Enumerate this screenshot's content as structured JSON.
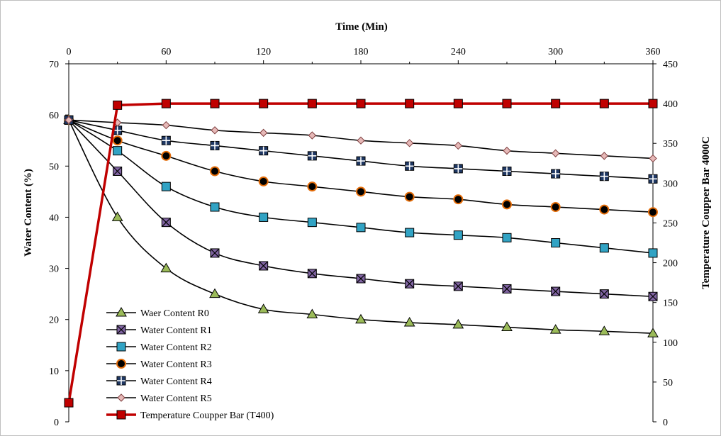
{
  "chart_data": {
    "type": "line",
    "x_axis": {
      "title": "Time (Min)",
      "position": "top",
      "range": [
        0,
        360
      ],
      "ticks": [
        0,
        60,
        120,
        180,
        240,
        300,
        360
      ]
    },
    "y_axis_left": {
      "title": "Water Content (%)",
      "range": [
        0,
        70
      ],
      "ticks": [
        0,
        10,
        20,
        30,
        40,
        50,
        60,
        70
      ]
    },
    "y_axis_right": {
      "title": "Temperature Coupper Bar 4000C",
      "range": [
        0,
        450
      ],
      "ticks": [
        0,
        50,
        100,
        150,
        200,
        250,
        300,
        350,
        400,
        450
      ]
    },
    "grid": false,
    "legend_position": "bottom-left",
    "x": [
      0,
      30,
      60,
      90,
      120,
      150,
      180,
      210,
      240,
      270,
      300,
      330,
      360
    ],
    "series": [
      {
        "name": "Waer Content  R0",
        "axis": "left",
        "marker": "triangle",
        "marker_fill": "#9bbb59",
        "line_color": "#000000",
        "values": [
          59,
          40,
          30,
          25,
          22,
          21,
          20,
          19.4,
          19,
          18.5,
          18,
          17.7,
          17.3
        ]
      },
      {
        "name": "Water Content R1",
        "axis": "left",
        "marker": "square-x",
        "marker_fill": "#8064a2",
        "line_color": "#000000",
        "values": [
          59,
          49,
          39,
          33,
          30.5,
          29,
          28,
          27,
          26.5,
          26,
          25.5,
          25,
          24.5
        ]
      },
      {
        "name": "Water Content  R2",
        "axis": "left",
        "marker": "square",
        "marker_fill": "#31a3c4",
        "line_color": "#000000",
        "values": [
          59,
          53,
          46,
          42,
          40,
          39,
          38,
          37,
          36.5,
          36,
          35,
          34,
          33
        ]
      },
      {
        "name": "Water Content  R3",
        "axis": "left",
        "marker": "circle",
        "marker_fill": "#e36c09",
        "line_color": "#000000",
        "values": [
          59,
          55,
          52,
          49,
          47,
          46,
          45,
          44,
          43.5,
          42.5,
          42,
          41.5,
          41
        ]
      },
      {
        "name": "Water Content  R4",
        "axis": "left",
        "marker": "square-plus",
        "marker_fill": "#1f3864",
        "line_color": "#000000",
        "values": [
          59,
          57,
          55,
          54,
          53,
          52,
          51,
          50,
          49.5,
          49,
          48.5,
          48,
          47.5
        ]
      },
      {
        "name": "Water Content  R5",
        "axis": "left",
        "marker": "diamond",
        "marker_fill": "#e6b9b8",
        "line_color": "#000000",
        "values": [
          59,
          58.5,
          58,
          57,
          56.5,
          56,
          55,
          54.5,
          54,
          53,
          52.5,
          52,
          51.5
        ]
      },
      {
        "name": "Temperature Coupper Bar (T400)",
        "axis": "right",
        "marker": "square",
        "marker_fill": "#c00000",
        "line_color": "#c00000",
        "values": [
          24,
          398,
          400,
          400,
          400,
          400,
          400,
          400,
          400,
          400,
          400,
          400,
          400
        ]
      }
    ]
  }
}
